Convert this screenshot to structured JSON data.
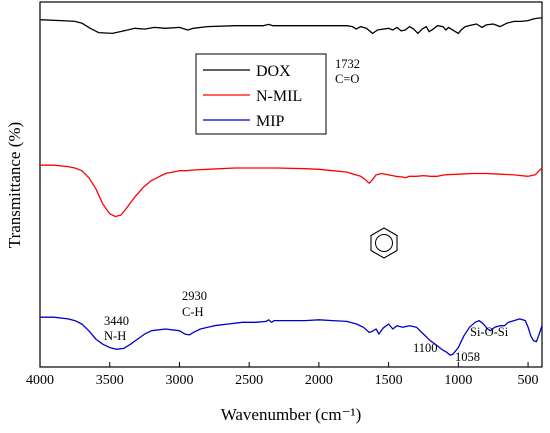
{
  "chart_data": {
    "type": "line",
    "title": "",
    "xlabel": "Wavenumber (cm⁻¹)",
    "ylabel": "Transmittance (%)",
    "xlim": [
      4000,
      400
    ],
    "x_reversed": true,
    "x_ticks": [
      4000,
      3500,
      3000,
      2500,
      2000,
      1500,
      1000,
      500
    ],
    "y_ticks": "none",
    "grid": false,
    "legend": {
      "placement": "top-center",
      "boxed": true
    },
    "series": [
      {
        "name": "DOX",
        "color": "#000000",
        "points": [
          [
            4000,
            0.68
          ],
          [
            3850,
            0.67
          ],
          [
            3750,
            0.66
          ],
          [
            3700,
            0.64
          ],
          [
            3640,
            0.58
          ],
          [
            3580,
            0.53
          ],
          [
            3480,
            0.52
          ],
          [
            3400,
            0.55
          ],
          [
            3320,
            0.58
          ],
          [
            3250,
            0.57
          ],
          [
            3180,
            0.59
          ],
          [
            3100,
            0.58
          ],
          [
            3000,
            0.59
          ],
          [
            2940,
            0.56
          ],
          [
            2900,
            0.58
          ],
          [
            2800,
            0.6
          ],
          [
            2600,
            0.61
          ],
          [
            2400,
            0.61
          ],
          [
            2360,
            0.625
          ],
          [
            2330,
            0.61
          ],
          [
            2200,
            0.61
          ],
          [
            2000,
            0.61
          ],
          [
            1800,
            0.61
          ],
          [
            1760,
            0.6
          ],
          [
            1732,
            0.57
          ],
          [
            1700,
            0.6
          ],
          [
            1660,
            0.58
          ],
          [
            1615,
            0.52
          ],
          [
            1580,
            0.56
          ],
          [
            1540,
            0.57
          ],
          [
            1500,
            0.58
          ],
          [
            1470,
            0.56
          ],
          [
            1440,
            0.59
          ],
          [
            1410,
            0.55
          ],
          [
            1380,
            0.56
          ],
          [
            1350,
            0.6
          ],
          [
            1320,
            0.57
          ],
          [
            1290,
            0.52
          ],
          [
            1260,
            0.57
          ],
          [
            1230,
            0.6
          ],
          [
            1210,
            0.54
          ],
          [
            1180,
            0.57
          ],
          [
            1150,
            0.61
          ],
          [
            1110,
            0.6
          ],
          [
            1090,
            0.56
          ],
          [
            1070,
            0.59
          ],
          [
            1000,
            0.52
          ],
          [
            980,
            0.56
          ],
          [
            950,
            0.6
          ],
          [
            900,
            0.62
          ],
          [
            870,
            0.63
          ],
          [
            830,
            0.59
          ],
          [
            800,
            0.62
          ],
          [
            750,
            0.63
          ],
          [
            700,
            0.6
          ],
          [
            650,
            0.64
          ],
          [
            600,
            0.66
          ],
          [
            550,
            0.66
          ],
          [
            500,
            0.67
          ],
          [
            460,
            0.69
          ],
          [
            420,
            0.7
          ],
          [
            400,
            0.7
          ]
        ]
      },
      {
        "name": "N-MIL",
        "color": "#ff0000",
        "points": [
          [
            4000,
            0.41
          ],
          [
            3900,
            0.41
          ],
          [
            3800,
            0.4
          ],
          [
            3750,
            0.39
          ],
          [
            3700,
            0.37
          ],
          [
            3650,
            0.32
          ],
          [
            3600,
            0.24
          ],
          [
            3550,
            0.13
          ],
          [
            3500,
            0.06
          ],
          [
            3460,
            0.04
          ],
          [
            3420,
            0.05
          ],
          [
            3380,
            0.1
          ],
          [
            3320,
            0.18
          ],
          [
            3260,
            0.25
          ],
          [
            3200,
            0.3
          ],
          [
            3100,
            0.35
          ],
          [
            3000,
            0.37
          ],
          [
            2950,
            0.37
          ],
          [
            2900,
            0.375
          ],
          [
            2800,
            0.38
          ],
          [
            2600,
            0.39
          ],
          [
            2500,
            0.39
          ],
          [
            2400,
            0.39
          ],
          [
            2300,
            0.39
          ],
          [
            2100,
            0.385
          ],
          [
            2000,
            0.38
          ],
          [
            1900,
            0.37
          ],
          [
            1800,
            0.36
          ],
          [
            1700,
            0.33
          ],
          [
            1660,
            0.3
          ],
          [
            1640,
            0.28
          ],
          [
            1620,
            0.3
          ],
          [
            1590,
            0.34
          ],
          [
            1550,
            0.35
          ],
          [
            1500,
            0.34
          ],
          [
            1450,
            0.33
          ],
          [
            1400,
            0.325
          ],
          [
            1380,
            0.32
          ],
          [
            1350,
            0.33
          ],
          [
            1300,
            0.33
          ],
          [
            1250,
            0.335
          ],
          [
            1200,
            0.33
          ],
          [
            1150,
            0.33
          ],
          [
            1100,
            0.34
          ],
          [
            1000,
            0.345
          ],
          [
            900,
            0.35
          ],
          [
            800,
            0.35
          ],
          [
            700,
            0.345
          ],
          [
            600,
            0.34
          ],
          [
            550,
            0.335
          ],
          [
            500,
            0.33
          ],
          [
            450,
            0.34
          ],
          [
            420,
            0.37
          ],
          [
            400,
            0.39
          ]
        ]
      },
      {
        "name": "MIP",
        "color": "#0000cc",
        "points": [
          [
            4000,
            0.23
          ],
          [
            3900,
            0.23
          ],
          [
            3800,
            0.22
          ],
          [
            3750,
            0.21
          ],
          [
            3700,
            0.19
          ],
          [
            3650,
            0.15
          ],
          [
            3600,
            0.1
          ],
          [
            3550,
            0.07
          ],
          [
            3500,
            0.05
          ],
          [
            3450,
            0.04
          ],
          [
            3400,
            0.045
          ],
          [
            3350,
            0.07
          ],
          [
            3300,
            0.1
          ],
          [
            3250,
            0.13
          ],
          [
            3200,
            0.15
          ],
          [
            3100,
            0.16
          ],
          [
            3000,
            0.15
          ],
          [
            2960,
            0.13
          ],
          [
            2930,
            0.125
          ],
          [
            2900,
            0.14
          ],
          [
            2850,
            0.16
          ],
          [
            2750,
            0.18
          ],
          [
            2650,
            0.19
          ],
          [
            2550,
            0.2
          ],
          [
            2450,
            0.2
          ],
          [
            2380,
            0.205
          ],
          [
            2360,
            0.215
          ],
          [
            2340,
            0.2
          ],
          [
            2320,
            0.21
          ],
          [
            2200,
            0.21
          ],
          [
            2100,
            0.21
          ],
          [
            2000,
            0.215
          ],
          [
            1900,
            0.21
          ],
          [
            1800,
            0.205
          ],
          [
            1730,
            0.19
          ],
          [
            1680,
            0.17
          ],
          [
            1640,
            0.14
          ],
          [
            1620,
            0.145
          ],
          [
            1590,
            0.16
          ],
          [
            1570,
            0.13
          ],
          [
            1540,
            0.165
          ],
          [
            1500,
            0.19
          ],
          [
            1470,
            0.16
          ],
          [
            1440,
            0.18
          ],
          [
            1400,
            0.17
          ],
          [
            1350,
            0.18
          ],
          [
            1300,
            0.17
          ],
          [
            1250,
            0.13
          ],
          [
            1200,
            0.09
          ],
          [
            1150,
            0.06
          ],
          [
            1120,
            0.04
          ],
          [
            1100,
            0.03
          ],
          [
            1080,
            0.02
          ],
          [
            1058,
            0.005
          ],
          [
            1040,
            0.01
          ],
          [
            1000,
            0.05
          ],
          [
            960,
            0.12
          ],
          [
            920,
            0.17
          ],
          [
            880,
            0.2
          ],
          [
            850,
            0.21
          ],
          [
            820,
            0.19
          ],
          [
            790,
            0.16
          ],
          [
            770,
            0.15
          ],
          [
            740,
            0.17
          ],
          [
            700,
            0.18
          ],
          [
            670,
            0.18
          ],
          [
            640,
            0.2
          ],
          [
            600,
            0.21
          ],
          [
            560,
            0.22
          ],
          [
            520,
            0.21
          ],
          [
            500,
            0.17
          ],
          [
            480,
            0.12
          ],
          [
            460,
            0.09
          ],
          [
            440,
            0.085
          ],
          [
            420,
            0.13
          ],
          [
            400,
            0.18
          ]
        ]
      }
    ],
    "annotations": [
      {
        "text": "1732",
        "series": "DOX"
      },
      {
        "text": "C=O",
        "series": "DOX"
      },
      {
        "text": "3440",
        "series": "MIP"
      },
      {
        "text": "N-H",
        "series": "MIP"
      },
      {
        "text": "2930",
        "series": "MIP"
      },
      {
        "text": "C-H",
        "series": "MIP"
      },
      {
        "text": "1100",
        "series": "MIP"
      },
      {
        "text": "1058",
        "series": "MIP"
      },
      {
        "text": "Si-O-Si",
        "series": "MIP"
      }
    ],
    "benzene_ring_marker": {
      "series": "MIP",
      "near_wavenumber": 1600
    }
  }
}
